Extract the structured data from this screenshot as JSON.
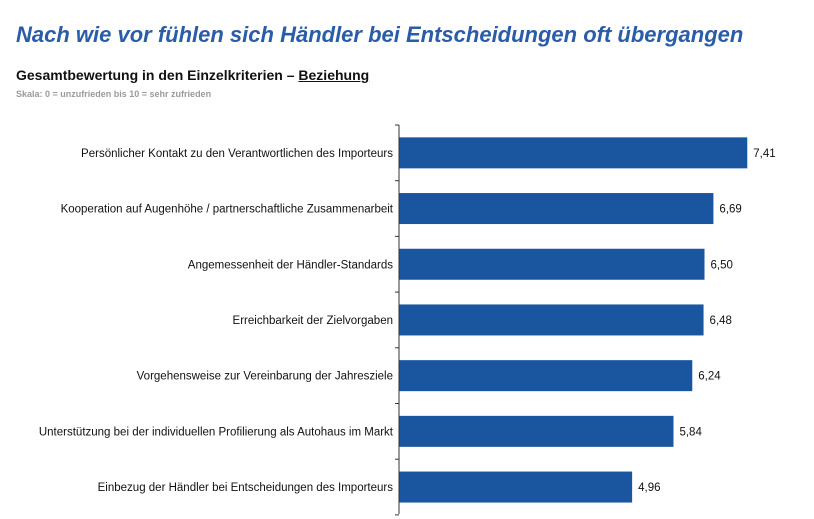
{
  "headline": "Nach wie vor fühlen sich Händler bei Entscheidungen oft übergangen",
  "subtitle": {
    "prefix": "Gesamtbewertung in den Einzelkriterien – ",
    "emphasis": "Beziehung"
  },
  "scale_note": "Skala: 0 = unzufrieden bis 10 = sehr zufrieden",
  "colors": {
    "bar": "#1a56a0",
    "headline": "#2a5ca8",
    "axis": "#333333"
  },
  "chart_data": {
    "type": "bar",
    "orientation": "horizontal",
    "title": "Gesamtbewertung in den Einzelkriterien – Beziehung",
    "xlabel": "",
    "ylabel": "",
    "xlim": [
      0,
      10
    ],
    "categories": [
      "Persönlicher Kontakt zu den Verantwortlichen des Importeurs",
      "Kooperation auf Augenhöhe / partnerschaftliche Zusammenarbeit",
      "Angemessenheit der Händler-Standards",
      "Erreichbarkeit der Zielvorgaben",
      "Vorgehensweise zur Vereinbarung der Jahresziele",
      "Unterstützung bei der individuellen Profilierung als Autohaus im Markt",
      "Einbezug der Händler bei Entscheidungen des Importeurs"
    ],
    "values": [
      7.41,
      6.69,
      6.5,
      6.48,
      6.24,
      5.84,
      4.96
    ],
    "value_labels": [
      "7,41",
      "6,69",
      "6,50",
      "6,48",
      "6,24",
      "5,84",
      "4,96"
    ]
  }
}
